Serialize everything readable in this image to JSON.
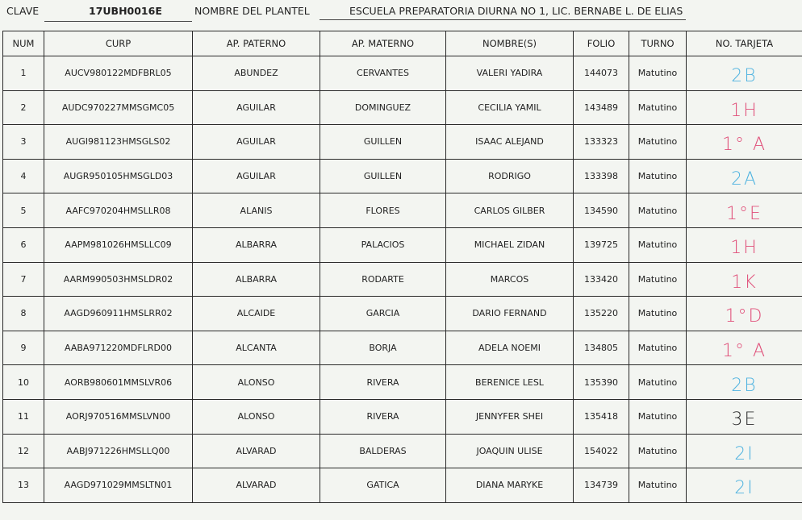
{
  "header": {
    "clave_label": "CLAVE",
    "clave_value": "17UBH0016E",
    "plantel_label": "NOMBRE DEL PLANTEL",
    "plantel_value": "ESCUELA PREPARATORIA DIURNA NO 1, LIC. BERNABE L. DE ELIAS"
  },
  "columns": [
    "NUM",
    "CURP",
    "AP. PATERNO",
    "AP. MATERNO",
    "NOMBRE(S)",
    "FOLIO",
    "TURNO",
    "NO. TARJETA"
  ],
  "ink_colors": {
    "blue": "#4fb3e0",
    "pink": "#e0507a",
    "black": "#2e2e2e"
  },
  "rows": [
    {
      "num": "1",
      "curp": "AUCV980122MDFBRL05",
      "paterno": "ABUNDEZ",
      "materno": "CERVANTES",
      "nombre": "VALERI YADIRA",
      "folio": "144073",
      "turno": "Matutino",
      "tarjeta": "2B",
      "ink": "blue"
    },
    {
      "num": "2",
      "curp": "AUDC970227MMSGMC05",
      "paterno": "AGUILAR",
      "materno": "DOMINGUEZ",
      "nombre": "CECILIA YAMIL",
      "folio": "143489",
      "turno": "Matutino",
      "tarjeta": "1H",
      "ink": "pink"
    },
    {
      "num": "3",
      "curp": "AUGI981123HMSGLS02",
      "paterno": "AGUILAR",
      "materno": "GUILLEN",
      "nombre": "ISAAC ALEJAND",
      "folio": "133323",
      "turno": "Matutino",
      "tarjeta": "1° A",
      "ink": "pink"
    },
    {
      "num": "4",
      "curp": "AUGR950105HMSGLD03",
      "paterno": "AGUILAR",
      "materno": "GUILLEN",
      "nombre": "RODRIGO",
      "folio": "133398",
      "turno": "Matutino",
      "tarjeta": "2A",
      "ink": "blue"
    },
    {
      "num": "5",
      "curp": "AAFC970204HMSLLR08",
      "paterno": "ALANIS",
      "materno": "FLORES",
      "nombre": "CARLOS GILBER",
      "folio": "134590",
      "turno": "Matutino",
      "tarjeta": "1°E",
      "ink": "pink"
    },
    {
      "num": "6",
      "curp": "AAPM981026HMSLLC09",
      "paterno": "ALBARRA",
      "materno": "PALACIOS",
      "nombre": "MICHAEL ZIDAN",
      "folio": "139725",
      "turno": "Matutino",
      "tarjeta": "1H",
      "ink": "pink"
    },
    {
      "num": "7",
      "curp": "AARM990503HMSLDR02",
      "paterno": "ALBARRA",
      "materno": "RODARTE",
      "nombre": "MARCOS",
      "folio": "133420",
      "turno": "Matutino",
      "tarjeta": "1K",
      "ink": "pink"
    },
    {
      "num": "8",
      "curp": "AAGD960911HMSLRR02",
      "paterno": "ALCAIDE",
      "materno": "GARCIA",
      "nombre": "DARIO FERNAND",
      "folio": "135220",
      "turno": "Matutino",
      "tarjeta": "1°D",
      "ink": "pink"
    },
    {
      "num": "9",
      "curp": "AABA971220MDFLRD00",
      "paterno": "ALCANTA",
      "materno": "BORJA",
      "nombre": "ADELA NOEMI",
      "folio": "134805",
      "turno": "Matutino",
      "tarjeta": "1° A",
      "ink": "pink"
    },
    {
      "num": "10",
      "curp": "AORB980601MMSLVR06",
      "paterno": "ALONSO",
      "materno": "RIVERA",
      "nombre": "BERENICE LESL",
      "folio": "135390",
      "turno": "Matutino",
      "tarjeta": "2B",
      "ink": "blue"
    },
    {
      "num": "11",
      "curp": "AORJ970516MMSLVN00",
      "paterno": "ALONSO",
      "materno": "RIVERA",
      "nombre": "JENNYFER SHEI",
      "folio": "135418",
      "turno": "Matutino",
      "tarjeta": "3E",
      "ink": "black"
    },
    {
      "num": "12",
      "curp": "AABJ971226HMSLLQ00",
      "paterno": "ALVARAD",
      "materno": "BALDERAS",
      "nombre": "JOAQUIN ULISE",
      "folio": "154022",
      "turno": "Matutino",
      "tarjeta": "2I",
      "ink": "blue"
    },
    {
      "num": "13",
      "curp": "AAGD971029MMSLTN01",
      "paterno": "ALVARAD",
      "materno": "GATICA",
      "nombre": "DIANA MARYKE",
      "folio": "134739",
      "turno": "Matutino",
      "tarjeta": "2I",
      "ink": "blue"
    }
  ]
}
